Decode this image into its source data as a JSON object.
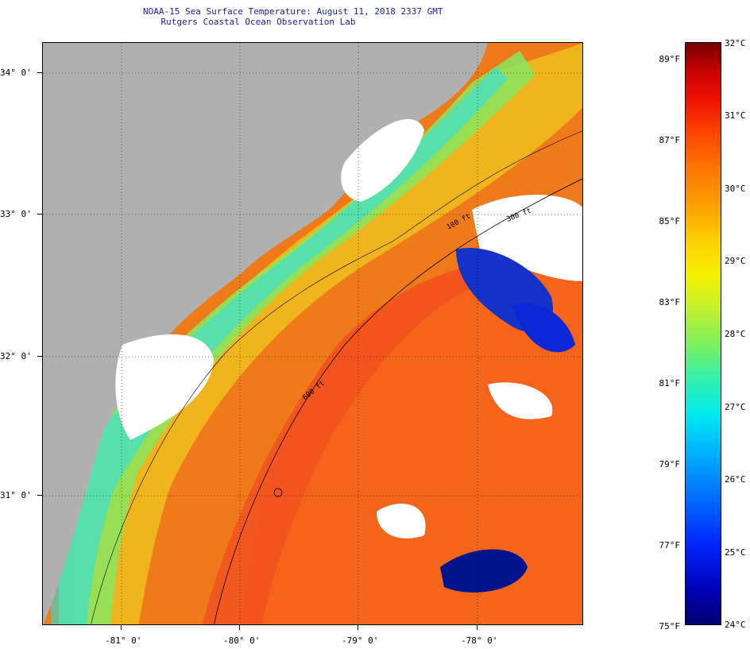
{
  "header": {
    "title": "NOAA-15 Sea Surface Temperature:  August 11, 2018 2337 GMT",
    "subtitle": "Rutgers Coastal Ocean Observation Lab"
  },
  "map": {
    "x_axis_labels": [
      "-81° 0'",
      "-80° 0'",
      "-79° 0'",
      "-78° 0'"
    ],
    "y_axis_labels": [
      "34° 0'",
      "33° 0'",
      "32° 0'",
      "31° 0'"
    ],
    "contour_labels": [
      "100 ft",
      "300 ft",
      "600 ft"
    ],
    "colors": {
      "land": "#b0b0b0",
      "cloud": "#ffffff",
      "warm_water": "#ef7a1a",
      "cold_water": "#00148c"
    }
  },
  "colorbar": {
    "fahrenheit_labels": [
      "89°F",
      "87°F",
      "85°F",
      "83°F",
      "81°F",
      "79°F",
      "77°F",
      "75°F"
    ],
    "celsius_labels": [
      "32°C",
      "31°C",
      "30°C",
      "29°C",
      "28°C",
      "27°C",
      "26°C",
      "25°C",
      "24°C"
    ]
  }
}
